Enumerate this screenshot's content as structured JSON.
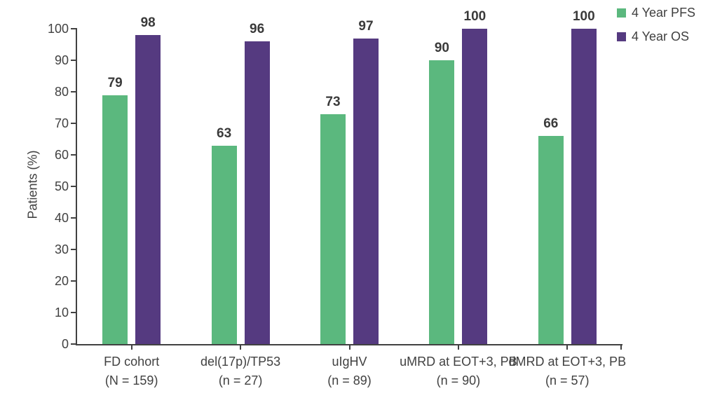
{
  "chart_data": {
    "type": "bar",
    "title": "",
    "xlabel": "",
    "ylabel": "Patients (%)",
    "ylim": [
      0,
      100
    ],
    "ytick_interval": 10,
    "ytick_labels": [
      "0",
      "10",
      "20",
      "30",
      "40",
      "50",
      "60",
      "70",
      "80",
      "90",
      "100"
    ],
    "grid": false,
    "legend_position": "top-right",
    "bar_value_labels": true,
    "categories": [
      {
        "label": "FD cohort",
        "sublabel": "(N = 159)"
      },
      {
        "label": "del(17p)/TP53",
        "sublabel": "(n = 27)"
      },
      {
        "label": "uIgHV",
        "sublabel": "(n = 89)"
      },
      {
        "label": "uMRD at EOT+3, PB",
        "sublabel": "(n = 90)"
      },
      {
        "label": "dMRD at EOT+3, PB",
        "sublabel": "(n = 57)"
      }
    ],
    "series": [
      {
        "name": "4 Year PFS",
        "color": "#5bb87e",
        "values": [
          79,
          63,
          73,
          90,
          66
        ]
      },
      {
        "name": "4 Year OS",
        "color": "#553a80",
        "values": [
          98,
          96,
          97,
          100,
          100
        ]
      }
    ],
    "colors": {
      "axis": "#414141",
      "tick_label": "#414141",
      "value_label": "#3a3a3a",
      "legend_label": "#3f3f3f"
    }
  }
}
